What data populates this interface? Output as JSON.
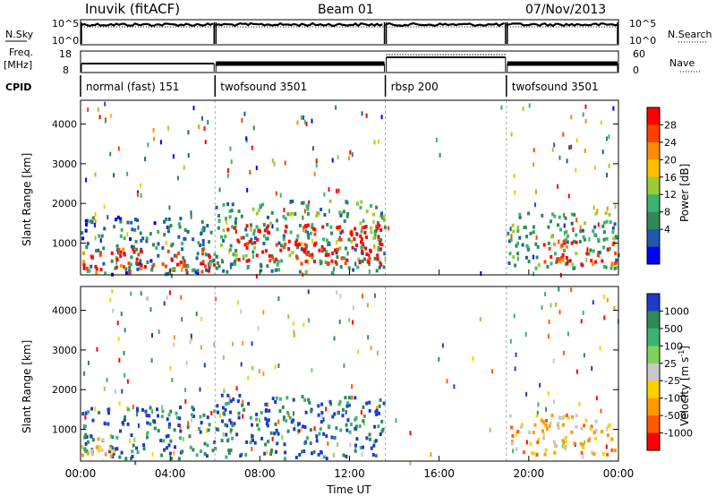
{
  "header": {
    "title": "Inuvik (fitACF)",
    "beam": "Beam 01",
    "date": "07/Nov/2013"
  },
  "noise_panel": {
    "left_label": "N.Sky",
    "right_label": "N.Search",
    "left_ticks": [
      "10^5",
      "10^0"
    ],
    "right_ticks": [
      "10^5",
      "10^0"
    ]
  },
  "freq_panel": {
    "left_label_1": "Freq.",
    "left_label_2": "[MHz]",
    "right_label": "Nave",
    "left_ticks": [
      "18",
      "8"
    ],
    "right_ticks": [
      "60",
      "0"
    ]
  },
  "cpid": {
    "label": "CPID",
    "segments": [
      {
        "name": "normal (fast) 151",
        "start_h": 0.0,
        "end_h": 6.0
      },
      {
        "name": "twofsound 3501",
        "start_h": 6.0,
        "end_h": 13.6
      },
      {
        "name": "rbsp 200",
        "start_h": 13.6,
        "end_h": 19.0
      },
      {
        "name": "twofsound 3501",
        "start_h": 19.0,
        "end_h": 24.0
      }
    ]
  },
  "chart_data": [
    {
      "type": "heatmap",
      "quantity": "power",
      "xlabel": "Time UT",
      "ylabel": "Slant Range [km]",
      "xlim": [
        0,
        24
      ],
      "ylim": [
        200,
        4600
      ],
      "yticks": [
        "1000",
        "2000",
        "3000",
        "4000"
      ],
      "colorbar": {
        "label": "Power [dB]",
        "ticks": [
          "28",
          "24",
          "20",
          "16",
          "12",
          "8",
          "4"
        ],
        "colors": [
          "#ff0000",
          "#ff4000",
          "#ff8c00",
          "#ffc000",
          "#9acd32",
          "#3cb371",
          "#2e8b57",
          "#1e5aa8",
          "#0000ff"
        ]
      },
      "regions": [
        {
          "t0": 0.0,
          "t1": 6.0,
          "r0": 250,
          "r1": 1700,
          "level": 7
        },
        {
          "t0": 0.0,
          "t1": 6.0,
          "r0": 300,
          "r1": 900,
          "level": 1
        },
        {
          "t0": 6.0,
          "t1": 13.6,
          "r0": 300,
          "r1": 2100,
          "level": 6
        },
        {
          "t0": 6.5,
          "t1": 13.5,
          "r0": 500,
          "r1": 1500,
          "level": 0
        },
        {
          "t0": 19.0,
          "t1": 24.0,
          "r0": 400,
          "r1": 1800,
          "level": 6
        },
        {
          "t0": 20.5,
          "t1": 24.0,
          "r0": 500,
          "r1": 1100,
          "level": 1
        }
      ]
    },
    {
      "type": "heatmap",
      "quantity": "velocity",
      "xlabel": "Time UT",
      "ylabel": "Slant Range [km]",
      "xlim": [
        0,
        24
      ],
      "ylim": [
        200,
        4600
      ],
      "xticks": [
        "00:00",
        "04:00",
        "08:00",
        "12:00",
        "16:00",
        "20:00",
        "00:00"
      ],
      "yticks": [
        "1000",
        "2000",
        "3000",
        "4000"
      ],
      "colorbar": {
        "label": "Velocity [m s^-1]",
        "ticks": [
          "1000",
          "500",
          "100",
          "25",
          "-25",
          "-100",
          "-500",
          "-1000"
        ],
        "colors": [
          "#1e3cc8",
          "#2e8b57",
          "#3cb371",
          "#7fd35a",
          "#c8c8c8",
          "#ffd000",
          "#ff9a00",
          "#ff5a00",
          "#ff0000"
        ]
      },
      "regions": [
        {
          "t0": 0.0,
          "t1": 6.0,
          "r0": 300,
          "r1": 1600,
          "level": 1
        },
        {
          "t0": 0.0,
          "t1": 1.5,
          "r0": 300,
          "r1": 900,
          "level": 6
        },
        {
          "t0": 6.0,
          "t1": 13.6,
          "r0": 300,
          "r1": 1900,
          "level": 1
        },
        {
          "t0": 19.0,
          "t1": 24.0,
          "r0": 400,
          "r1": 1400,
          "level": 6
        }
      ]
    }
  ]
}
